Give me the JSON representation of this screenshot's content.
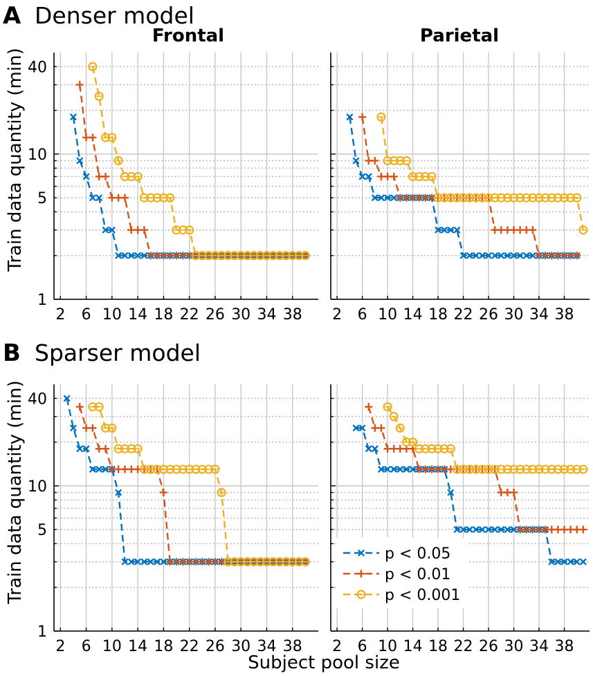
{
  "figure": {
    "section_a": {
      "letter": "A",
      "title": "Denser model"
    },
    "section_b": {
      "letter": "B",
      "title": "Sparser model"
    },
    "columns": [
      "Frontal",
      "Parietal"
    ],
    "xlabel": "Subject pool size",
    "ylabel": "Train data quantity (min)"
  },
  "colors": {
    "p05": "#0072BD",
    "p01": "#D95319",
    "p001": "#EDB120",
    "grid": "#c8c8c8"
  },
  "legend": [
    {
      "key": "p05",
      "marker": "x",
      "label": "p < 0.05"
    },
    {
      "key": "p01",
      "marker": "+",
      "label": "p < 0.01"
    },
    {
      "key": "p001",
      "marker": "o",
      "label": "p < 0.001"
    }
  ],
  "chart_data": [
    {
      "type": "line",
      "title": "Frontal",
      "row": "Denser model",
      "xlabel": "Subject pool size",
      "ylabel": "Train data quantity (min)",
      "yscale": "log",
      "ylim": [
        1,
        50
      ],
      "xlim": [
        1,
        42
      ],
      "xticks": [
        2,
        6,
        10,
        14,
        18,
        22,
        26,
        30,
        34,
        38
      ],
      "yticks": [
        1,
        5,
        10,
        40
      ],
      "series": [
        {
          "name": "p < 0.05",
          "key": "p05",
          "marker": "x",
          "start_x": 4,
          "values": [
            18,
            9,
            7,
            5,
            5,
            3,
            3,
            2,
            2,
            2,
            2,
            2,
            2,
            2,
            2,
            2,
            2,
            2,
            2,
            2,
            2,
            2,
            2,
            2,
            2,
            2,
            2,
            2,
            2,
            2,
            2,
            2,
            2,
            2,
            2,
            2,
            2
          ]
        },
        {
          "name": "p < 0.01",
          "key": "p01",
          "marker": "+",
          "start_x": 5,
          "values": [
            30,
            13,
            13,
            7,
            7,
            5,
            5,
            5,
            3,
            3,
            3,
            2,
            2,
            2,
            2,
            2,
            2,
            2,
            2,
            2,
            2,
            2,
            2,
            2,
            2,
            2,
            2,
            2,
            2,
            2,
            2,
            2,
            2,
            2,
            2,
            2
          ]
        },
        {
          "name": "p < 0.001",
          "key": "p001",
          "marker": "o",
          "start_x": 7,
          "values": [
            40,
            25,
            13,
            13,
            9,
            7,
            7,
            7,
            5,
            5,
            5,
            5,
            5,
            3,
            3,
            3,
            2,
            2,
            2,
            2,
            2,
            2,
            2,
            2,
            2,
            2,
            2,
            2,
            2,
            2,
            2,
            2,
            2,
            2
          ]
        }
      ]
    },
    {
      "type": "line",
      "title": "Parietal",
      "row": "Denser model",
      "xlabel": "Subject pool size",
      "ylabel": "Train data quantity (min)",
      "yscale": "log",
      "ylim": [
        1,
        50
      ],
      "xlim": [
        1,
        42
      ],
      "xticks": [
        2,
        6,
        10,
        14,
        18,
        22,
        26,
        30,
        34,
        38
      ],
      "yticks": [
        1,
        5,
        10,
        40
      ],
      "series": [
        {
          "name": "p < 0.05",
          "key": "p05",
          "marker": "x",
          "start_x": 4,
          "values": [
            18,
            9,
            7,
            7,
            5,
            5,
            5,
            5,
            5,
            5,
            5,
            5,
            5,
            5,
            3,
            3,
            3,
            3,
            2,
            2,
            2,
            2,
            2,
            2,
            2,
            2,
            2,
            2,
            2,
            2,
            2,
            2,
            2,
            2,
            2,
            2,
            2
          ]
        },
        {
          "name": "p < 0.01",
          "key": "p01",
          "marker": "+",
          "start_x": 6,
          "values": [
            18,
            9,
            9,
            7,
            7,
            7,
            5,
            5,
            5,
            5,
            5,
            5,
            5,
            5,
            5,
            5,
            5,
            5,
            5,
            5,
            5,
            3,
            3,
            3,
            3,
            3,
            3,
            3,
            2,
            2,
            2,
            2,
            2,
            2,
            2
          ]
        },
        {
          "name": "p < 0.001",
          "key": "p001",
          "marker": "o",
          "start_x": 9,
          "values": [
            18,
            9,
            9,
            9,
            9,
            7,
            7,
            7,
            7,
            5,
            5,
            5,
            5,
            5,
            5,
            5,
            5,
            5,
            5,
            5,
            5,
            5,
            5,
            5,
            5,
            5,
            5,
            5,
            5,
            5,
            5,
            5,
            3
          ]
        }
      ]
    },
    {
      "type": "line",
      "title": "Frontal",
      "row": "Sparser model",
      "xlabel": "Subject pool size",
      "ylabel": "Train data quantity (min)",
      "yscale": "log",
      "ylim": [
        1,
        50
      ],
      "xlim": [
        1,
        42
      ],
      "xticks": [
        2,
        6,
        10,
        14,
        18,
        22,
        26,
        30,
        34,
        38
      ],
      "yticks": [
        1,
        5,
        10,
        40
      ],
      "series": [
        {
          "name": "p < 0.05",
          "key": "p05",
          "marker": "x",
          "start_x": 3,
          "values": [
            40,
            25,
            18,
            18,
            13,
            13,
            13,
            13,
            9,
            3,
            3,
            3,
            3,
            3,
            3,
            3,
            3,
            3,
            3,
            3,
            3,
            3,
            3,
            3,
            3,
            3,
            3,
            3,
            3,
            3,
            3,
            3,
            3,
            3,
            3,
            3,
            3,
            3
          ]
        },
        {
          "name": "p < 0.01",
          "key": "p01",
          "marker": "+",
          "start_x": 5,
          "values": [
            35,
            25,
            25,
            18,
            18,
            13,
            13,
            13,
            13,
            13,
            13,
            13,
            13,
            9,
            3,
            3,
            3,
            3,
            3,
            3,
            3,
            3,
            3,
            3,
            3,
            3,
            3,
            3,
            3,
            3,
            3,
            3,
            3,
            3,
            3,
            3
          ]
        },
        {
          "name": "p < 0.001",
          "key": "p001",
          "marker": "o",
          "start_x": 7,
          "values": [
            35,
            35,
            25,
            25,
            18,
            18,
            18,
            18,
            13,
            13,
            13,
            13,
            13,
            13,
            13,
            13,
            13,
            13,
            13,
            13,
            9,
            3,
            3,
            3,
            3,
            3,
            3,
            3,
            3,
            3,
            3,
            3,
            3,
            3
          ]
        }
      ]
    },
    {
      "type": "line",
      "title": "Parietal",
      "row": "Sparser model",
      "xlabel": "Subject pool size",
      "ylabel": "Train data quantity (min)",
      "yscale": "log",
      "ylim": [
        1,
        50
      ],
      "xlim": [
        1,
        42
      ],
      "xticks": [
        2,
        6,
        10,
        14,
        18,
        22,
        26,
        30,
        34,
        38
      ],
      "yticks": [
        1,
        5,
        10,
        40
      ],
      "series": [
        {
          "name": "p < 0.05",
          "key": "p05",
          "marker": "x",
          "start_x": 5,
          "values": [
            25,
            25,
            18,
            18,
            13,
            13,
            13,
            13,
            13,
            13,
            13,
            13,
            13,
            13,
            13,
            9,
            5,
            5,
            5,
            5,
            5,
            5,
            5,
            5,
            5,
            5,
            5,
            5,
            5,
            5,
            5,
            3,
            3,
            3,
            3,
            3,
            3
          ]
        },
        {
          "name": "p < 0.01",
          "key": "p01",
          "marker": "+",
          "start_x": 7,
          "values": [
            35,
            25,
            25,
            18,
            18,
            18,
            18,
            18,
            13,
            13,
            13,
            13,
            13,
            13,
            13,
            13,
            13,
            13,
            13,
            13,
            13,
            9,
            9,
            9,
            5,
            5,
            5,
            5,
            5,
            5,
            5,
            5,
            5,
            5,
            5
          ]
        },
        {
          "name": "p < 0.001",
          "key": "p001",
          "marker": "o",
          "start_x": 10,
          "values": [
            35,
            30,
            25,
            20,
            20,
            18,
            18,
            18,
            18,
            18,
            18,
            13,
            13,
            13,
            13,
            13,
            13,
            13,
            13,
            13,
            13,
            13,
            13,
            13,
            13,
            13,
            13,
            13,
            13,
            13,
            13,
            13
          ]
        }
      ]
    }
  ]
}
